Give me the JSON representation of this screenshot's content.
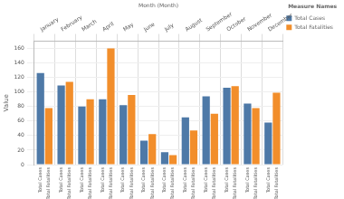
{
  "chart_data": {
    "type": "bar",
    "x_label": "Month (Month)",
    "y_label": "Value",
    "legend_title": "Measure Names",
    "legend": "right",
    "grid": true,
    "categories": [
      "January",
      "February",
      "March",
      "April",
      "May",
      "June",
      "July",
      "August",
      "September",
      "October",
      "November",
      "December"
    ],
    "series": [
      {
        "name": "Total Cases",
        "color": "#4e79a7",
        "values": [
          126,
          109,
          80,
          90,
          82,
          33,
          17,
          65,
          94,
          106,
          84,
          58
        ]
      },
      {
        "name": "Total Fatalities",
        "color": "#f28e2b",
        "values": [
          78,
          114,
          90,
          160,
          96,
          42,
          13,
          47,
          70,
          108,
          78,
          99
        ]
      }
    ],
    "ylim": [
      0,
      170
    ],
    "yticks": [
      0,
      20,
      40,
      60,
      80,
      100,
      120,
      140,
      160
    ]
  }
}
